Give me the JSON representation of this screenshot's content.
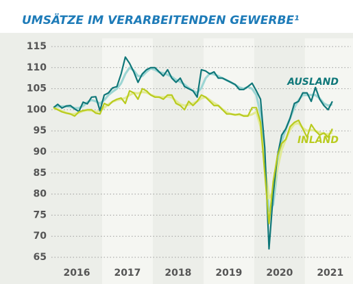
{
  "chart_data": {
    "type": "line",
    "title": "UMSÄTZE IM VERARBEITENDEN GEWERBE¹",
    "x": [
      2016.042,
      2016.125,
      2016.208,
      2016.292,
      2016.375,
      2016.458,
      2016.542,
      2016.625,
      2016.708,
      2016.792,
      2016.875,
      2016.958,
      2017.042,
      2017.125,
      2017.208,
      2017.292,
      2017.375,
      2017.458,
      2017.542,
      2017.625,
      2017.708,
      2017.792,
      2017.875,
      2017.958,
      2018.042,
      2018.125,
      2018.208,
      2018.292,
      2018.375,
      2018.458,
      2018.542,
      2018.625,
      2018.708,
      2018.792,
      2018.875,
      2018.958,
      2019.042,
      2019.125,
      2019.208,
      2019.292,
      2019.375,
      2019.458,
      2019.542,
      2019.625,
      2019.708,
      2019.792,
      2019.875,
      2019.958,
      2020.042,
      2020.125,
      2020.208,
      2020.292,
      2020.375,
      2020.458,
      2020.542,
      2020.625,
      2020.708,
      2020.792,
      2020.875,
      2020.958,
      2021.042,
      2021.125,
      2021.208,
      2021.292,
      2021.375,
      2021.458,
      2021.542
    ],
    "series": [
      {
        "color": "#9dd6d4",
        "values": [
          100.6,
          100.8,
          100.8,
          100.8,
          100.7,
          100.4,
          100.4,
          100.9,
          101.8,
          102.3,
          102,
          101.5,
          102.3,
          103.5,
          104.3,
          105,
          106.3,
          108.5,
          110,
          109.3,
          108,
          108,
          109,
          109.8,
          109.5,
          108.9,
          108.7,
          108.3,
          107.8,
          107.1,
          106.6,
          106,
          105.2,
          104.5,
          104,
          105.2,
          107.5,
          108.6,
          108.4,
          108,
          107.5,
          107,
          106.5,
          105.9,
          105.3,
          105,
          105.4,
          105,
          103.5,
          99,
          88,
          76,
          77.5,
          86,
          92.5,
          95.5,
          98,
          100.5,
          102.3,
          103.5,
          103.5,
          103.5,
          103.5,
          102.7,
          101.5,
          101,
          101.3
        ]
      },
      {
        "color": "#e2ea97",
        "values": [
          100.4,
          100.1,
          99.7,
          99.3,
          99,
          99,
          99.3,
          99.7,
          99.9,
          99.8,
          99.5,
          99.7,
          100.5,
          101.3,
          101.9,
          102.3,
          102.5,
          102.8,
          103.5,
          104,
          103.9,
          104.2,
          104.1,
          103.6,
          103.2,
          103,
          103,
          103.1,
          102.9,
          102.1,
          101.3,
          101,
          101.2,
          101.5,
          102,
          102.7,
          103,
          102.3,
          101.6,
          101,
          100.1,
          99.4,
          99,
          98.8,
          98.8,
          98.6,
          98.6,
          98.9,
          99.5,
          96,
          87,
          79,
          80.5,
          86,
          90.5,
          93,
          95.3,
          96.6,
          96.8,
          95.7,
          95,
          95.2,
          95,
          94.6,
          94.3,
          94.2,
          94.6
        ]
      },
      {
        "name": "AUSLAND",
        "color": "#0f7779",
        "values": [
          100.5,
          101.3,
          100.4,
          100.9,
          101,
          100.2,
          99.6,
          101.8,
          101.4,
          103,
          103.1,
          99.8,
          103.5,
          104,
          105.2,
          105.5,
          108.5,
          112.5,
          111,
          109,
          106.5,
          108.5,
          109.5,
          110,
          110,
          109,
          108,
          109.5,
          107.5,
          106.5,
          107.5,
          105.5,
          105,
          104.5,
          103,
          109.5,
          109.2,
          108.5,
          109,
          107.5,
          107.5,
          107,
          106.5,
          106,
          104.8,
          104.8,
          105.5,
          106.3,
          104.5,
          102.5,
          91,
          67,
          80,
          89,
          94,
          95.5,
          98,
          101.5,
          102,
          104,
          104,
          102,
          105.3,
          102.5,
          101,
          100,
          102
        ]
      },
      {
        "name": "INLAND",
        "color": "#b9cb1e",
        "values": [
          100.5,
          100,
          99.5,
          99.2,
          99,
          98.5,
          99.5,
          99.8,
          100,
          100,
          99.2,
          99,
          101.5,
          101,
          102,
          102.5,
          102.8,
          101.5,
          104.5,
          104,
          102.5,
          105,
          104.5,
          103.5,
          103,
          103,
          102.5,
          103.5,
          103.5,
          101.5,
          101,
          100,
          102,
          101,
          102,
          103.5,
          103,
          102,
          101,
          101,
          100,
          99,
          99,
          98.8,
          99,
          98.5,
          98.5,
          100.5,
          100.5,
          97,
          85,
          73,
          83,
          89,
          92,
          93,
          96,
          97,
          97.5,
          95.5,
          93.5,
          96.5,
          95,
          94,
          94.5,
          93.5,
          95.5
        ]
      }
    ],
    "xlim": [
      2016,
      2021.8
    ],
    "xticks": [
      {
        "value": 2016.5,
        "label": "2016"
      },
      {
        "value": 2017.5,
        "label": "2017"
      },
      {
        "value": 2018.5,
        "label": "2018"
      },
      {
        "value": 2019.5,
        "label": "2019"
      },
      {
        "value": 2020.5,
        "label": "2020"
      },
      {
        "value": 2021.5,
        "label": "2021"
      }
    ],
    "ylim": [
      65,
      115
    ],
    "yticks": [
      65,
      70,
      75,
      80,
      85,
      90,
      95,
      100,
      105,
      110,
      115
    ],
    "grid": true
  }
}
